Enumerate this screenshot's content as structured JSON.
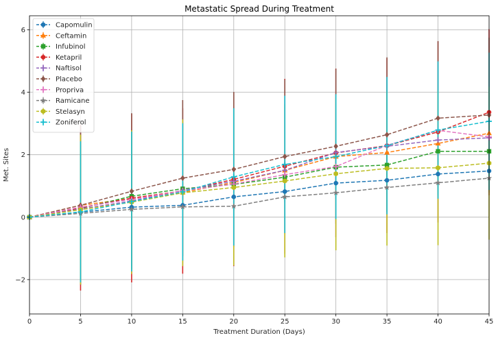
{
  "chart_data": {
    "type": "line",
    "title": "Metastatic Spread During Treatment",
    "xlabel": "Treatment Duration (Days)",
    "ylabel": "Met. Sites",
    "xlim": [
      0,
      45
    ],
    "ylim": [
      -3.1,
      6.45
    ],
    "x_ticks": [
      0,
      5,
      10,
      15,
      20,
      25,
      30,
      35,
      40,
      45
    ],
    "y_ticks": [
      -2,
      0,
      2,
      4,
      6
    ],
    "grid": true,
    "legend_position": "upper-left",
    "x": [
      0,
      5,
      10,
      15,
      20,
      25,
      30,
      35,
      40,
      45
    ],
    "series": [
      {
        "name": "Capomulin",
        "color": "#1f77b4",
        "marker": "circle",
        "values": [
          0,
          0.16,
          0.32,
          0.38,
          0.65,
          0.82,
          1.09,
          1.18,
          1.38,
          1.48
        ],
        "err": [
          0,
          0.07,
          0.1,
          0.12,
          0.17,
          0.2,
          0.2,
          0.24,
          0.28,
          0.3
        ]
      },
      {
        "name": "Ceftamin",
        "color": "#ff7f0e",
        "marker": "triangle",
        "values": [
          0,
          0.38,
          0.6,
          0.79,
          1.11,
          1.5,
          1.94,
          2.07,
          2.36,
          2.69
        ],
        "err": [
          0,
          0.1,
          0.15,
          0.2,
          0.22,
          0.28,
          0.32,
          0.36,
          0.4,
          0.42
        ]
      },
      {
        "name": "Infubinol",
        "color": "#2ca02c",
        "marker": "square",
        "values": [
          0,
          0.28,
          0.67,
          0.91,
          1.05,
          1.28,
          1.6,
          1.67,
          2.11,
          2.11
        ],
        "err": [
          0,
          0.1,
          0.15,
          0.2,
          0.22,
          0.25,
          0.3,
          0.32,
          0.35,
          0.4
        ]
      },
      {
        "name": "Ketapril",
        "color": "#d62728",
        "marker": "circle",
        "values": [
          0,
          0.3,
          0.61,
          0.84,
          1.21,
          1.63,
          2.06,
          2.29,
          2.73,
          3.36
        ],
        "err": [
          0,
          2.65,
          2.7,
          2.65,
          2.78,
          2.8,
          2.7,
          2.8,
          2.9,
          2.66
        ]
      },
      {
        "name": "Naftisol",
        "color": "#9467bd",
        "marker": "plus",
        "values": [
          0,
          0.26,
          0.52,
          0.86,
          1.15,
          1.5,
          2.07,
          2.27,
          2.47,
          2.54
        ],
        "err": [
          0,
          0.1,
          0.15,
          0.2,
          0.22,
          0.25,
          0.3,
          0.32,
          0.35,
          0.4
        ]
      },
      {
        "name": "Placebo",
        "color": "#8c564b",
        "marker": "diamond",
        "values": [
          0,
          0.38,
          0.83,
          1.25,
          1.53,
          1.94,
          2.27,
          2.64,
          3.17,
          3.27
        ],
        "err": [
          0,
          2.55,
          2.5,
          2.5,
          2.48,
          2.47,
          2.48,
          2.48,
          2.47,
          2.48
        ]
      },
      {
        "name": "Propriva",
        "color": "#e377c2",
        "marker": "plus",
        "values": [
          0,
          0.32,
          0.57,
          0.84,
          1.06,
          1.36,
          1.62,
          2.3,
          2.78,
          2.57
        ],
        "err": [
          0,
          0.1,
          0.15,
          0.2,
          0.22,
          0.25,
          0.3,
          0.32,
          0.35,
          0.4
        ]
      },
      {
        "name": "Ramicane",
        "color": "#7f7f7f",
        "marker": "star",
        "values": [
          0,
          0.12,
          0.25,
          0.33,
          0.35,
          0.65,
          0.78,
          0.95,
          1.1,
          1.25
        ],
        "err": [
          0,
          0.06,
          0.1,
          0.12,
          0.15,
          0.18,
          0.2,
          0.22,
          0.25,
          0.28
        ]
      },
      {
        "name": "Stelasyn",
        "color": "#bcbd22",
        "marker": "hexagon",
        "values": [
          0,
          0.24,
          0.48,
          0.78,
          0.95,
          1.16,
          1.39,
          1.56,
          1.58,
          1.73
        ],
        "err": [
          0,
          2.4,
          2.3,
          2.35,
          2.5,
          2.45,
          2.45,
          2.47,
          2.48,
          2.45
        ]
      },
      {
        "name": "Zoniferol",
        "color": "#17becf",
        "marker": "plus",
        "values": [
          0,
          0.17,
          0.5,
          0.81,
          1.29,
          1.69,
          1.94,
          2.29,
          2.79,
          3.07
        ],
        "err": [
          0,
          2.26,
          2.24,
          2.2,
          2.2,
          2.2,
          2.0,
          2.2,
          2.2,
          2.2
        ]
      }
    ]
  }
}
